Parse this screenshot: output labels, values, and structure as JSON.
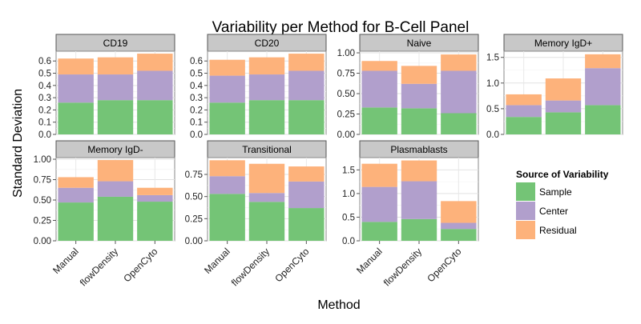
{
  "chart_data": {
    "type": "bar",
    "stacked": true,
    "faceted": true,
    "title": "Variability per Method for B-Cell Panel",
    "xlabel": "Method",
    "ylabel": "Standard Deviation",
    "categories": [
      "Manual",
      "flowDensity",
      "OpenCyto"
    ],
    "legend": {
      "title": "Source of Variability",
      "position": "right",
      "entries": [
        {
          "name": "Sample",
          "color": "#74c476"
        },
        {
          "name": "Center",
          "color": "#b19fcc"
        },
        {
          "name": "Residual",
          "color": "#fdb27b"
        }
      ]
    },
    "grid": true,
    "panels": [
      {
        "title": "CD19",
        "ylim": [
          0,
          0.68
        ],
        "yticks": [
          "0.0",
          "0.1",
          "0.2",
          "0.3",
          "0.4",
          "0.5",
          "0.6"
        ],
        "ytick_values": [
          0.0,
          0.1,
          0.2,
          0.3,
          0.4,
          0.5,
          0.6
        ],
        "series": [
          {
            "name": "Sample",
            "values": [
              0.26,
              0.28,
              0.28
            ]
          },
          {
            "name": "Center",
            "values": [
              0.23,
              0.21,
              0.24
            ]
          },
          {
            "name": "Residual",
            "values": [
              0.13,
              0.14,
              0.14
            ]
          }
        ]
      },
      {
        "title": "CD20",
        "ylim": [
          0,
          0.68
        ],
        "yticks": [
          "0.0",
          "0.1",
          "0.2",
          "0.3",
          "0.4",
          "0.5",
          "0.6"
        ],
        "ytick_values": [
          0.0,
          0.1,
          0.2,
          0.3,
          0.4,
          0.5,
          0.6
        ],
        "series": [
          {
            "name": "Sample",
            "values": [
              0.26,
              0.28,
              0.28
            ]
          },
          {
            "name": "Center",
            "values": [
              0.22,
              0.21,
              0.24
            ]
          },
          {
            "name": "Residual",
            "values": [
              0.13,
              0.14,
              0.14
            ]
          }
        ]
      },
      {
        "title": "Naive",
        "ylim": [
          0,
          1.02
        ],
        "yticks": [
          "0.00",
          "0.25",
          "0.50",
          "0.75",
          "1.00"
        ],
        "ytick_values": [
          0.0,
          0.25,
          0.5,
          0.75,
          1.0
        ],
        "series": [
          {
            "name": "Sample",
            "values": [
              0.33,
              0.32,
              0.26
            ]
          },
          {
            "name": "Center",
            "values": [
              0.45,
              0.3,
              0.52
            ]
          },
          {
            "name": "Residual",
            "values": [
              0.12,
              0.22,
              0.2
            ]
          }
        ]
      },
      {
        "title": "Memory IgD+",
        "ylim": [
          0,
          1.62
        ],
        "yticks": [
          "0.0",
          "0.5",
          "1.0",
          "1.5"
        ],
        "ytick_values": [
          0.0,
          0.5,
          1.0,
          1.5
        ],
        "series": [
          {
            "name": "Sample",
            "values": [
              0.34,
              0.43,
              0.57
            ]
          },
          {
            "name": "Center",
            "values": [
              0.23,
              0.23,
              0.72
            ]
          },
          {
            "name": "Residual",
            "values": [
              0.21,
              0.43,
              0.27
            ]
          }
        ]
      },
      {
        "title": "Memory IgD-",
        "ylim": [
          0,
          1.02
        ],
        "yticks": [
          "0.00",
          "0.25",
          "0.50",
          "0.75",
          "1.00"
        ],
        "ytick_values": [
          0.0,
          0.25,
          0.5,
          0.75,
          1.0
        ],
        "series": [
          {
            "name": "Sample",
            "values": [
              0.47,
              0.54,
              0.48
            ]
          },
          {
            "name": "Center",
            "values": [
              0.18,
              0.19,
              0.08
            ]
          },
          {
            "name": "Residual",
            "values": [
              0.13,
              0.26,
              0.09
            ]
          }
        ]
      },
      {
        "title": "Transitional",
        "ylim": [
          0,
          0.94
        ],
        "yticks": [
          "0.00",
          "0.25",
          "0.50",
          "0.75"
        ],
        "ytick_values": [
          0.0,
          0.25,
          0.5,
          0.75
        ],
        "series": [
          {
            "name": "Sample",
            "values": [
              0.53,
              0.44,
              0.37
            ]
          },
          {
            "name": "Center",
            "values": [
              0.2,
              0.1,
              0.3
            ]
          },
          {
            "name": "Residual",
            "values": [
              0.18,
              0.33,
              0.17
            ]
          }
        ]
      },
      {
        "title": "Plasmablasts",
        "ylim": [
          0,
          1.76
        ],
        "yticks": [
          "0.0",
          "0.5",
          "1.0",
          "1.5"
        ],
        "ytick_values": [
          0.0,
          0.5,
          1.0,
          1.5
        ],
        "series": [
          {
            "name": "Sample",
            "values": [
              0.4,
              0.46,
              0.25
            ]
          },
          {
            "name": "Center",
            "values": [
              0.74,
              0.8,
              0.13
            ]
          },
          {
            "name": "Residual",
            "values": [
              0.49,
              0.44,
              0.46
            ]
          }
        ]
      }
    ]
  }
}
